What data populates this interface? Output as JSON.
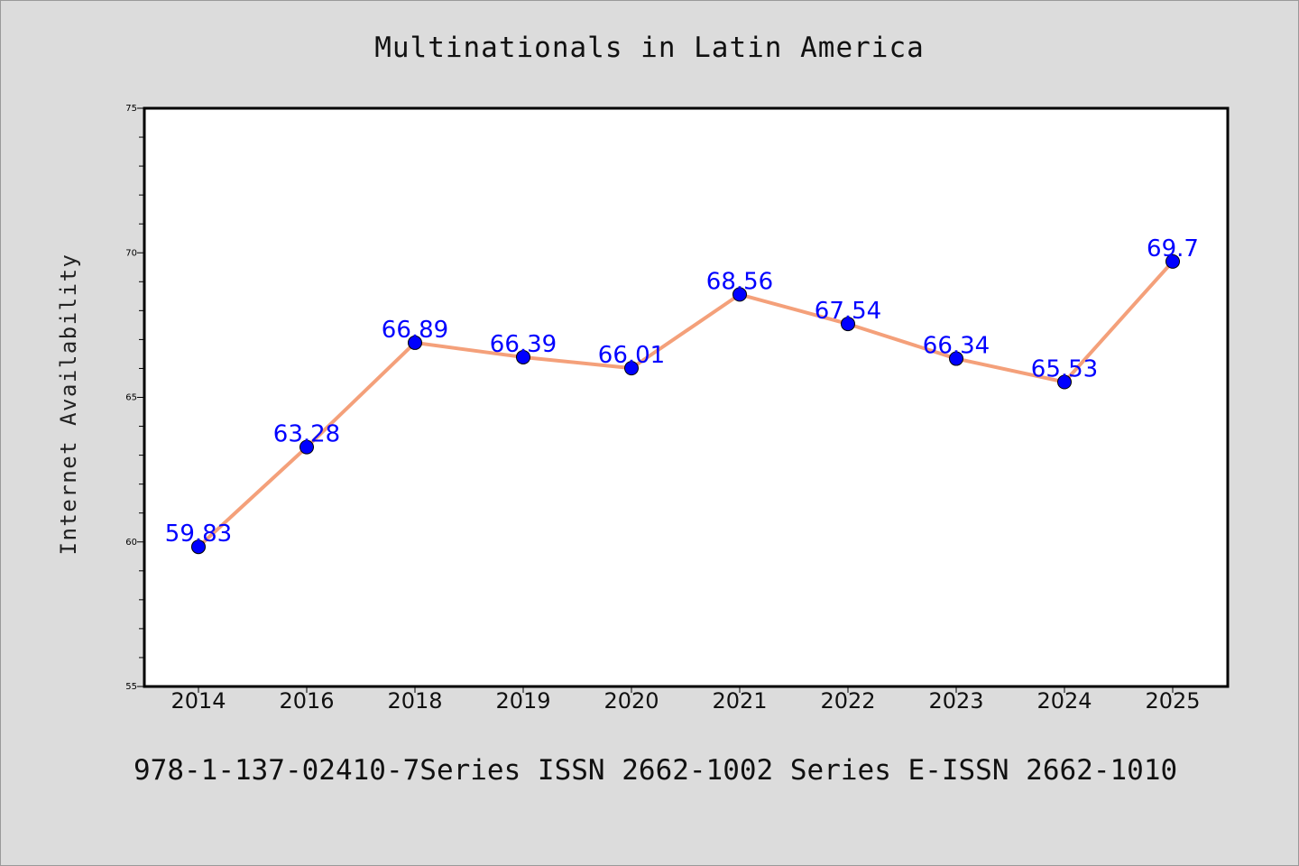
{
  "chart_data": {
    "type": "line",
    "title": "Multinationals in Latin America",
    "xlabel": "",
    "ylabel": "Internet Availability",
    "categories": [
      "2014",
      "2016",
      "2018",
      "2019",
      "2020",
      "2021",
      "2022",
      "2023",
      "2024",
      "2025"
    ],
    "series": [
      {
        "values": [
          59.83,
          63.28,
          66.89,
          66.39,
          66.01,
          68.56,
          67.54,
          66.34,
          65.53,
          69.7
        ],
        "data_labels": [
          "59.83",
          "63.28",
          "66.89",
          "66.39",
          "66.01",
          "68.56",
          "67.54",
          "66.34",
          "65.53",
          "69.7"
        ],
        "line_color": "#f4a07a",
        "marker_color": "#0000ff"
      }
    ],
    "ylim": [
      55,
      75
    ],
    "yticks": [
      "55",
      "60",
      "65",
      "70",
      "75"
    ],
    "grid": false,
    "legend": "none"
  },
  "footer": {
    "text": "978-1-137-02410-7Series ISSN 2662-1002 Series E-ISSN 2662-1010"
  },
  "colors": {
    "background": "#dcdcdc",
    "plot_background": "#ffffff",
    "axis": "#000000"
  }
}
